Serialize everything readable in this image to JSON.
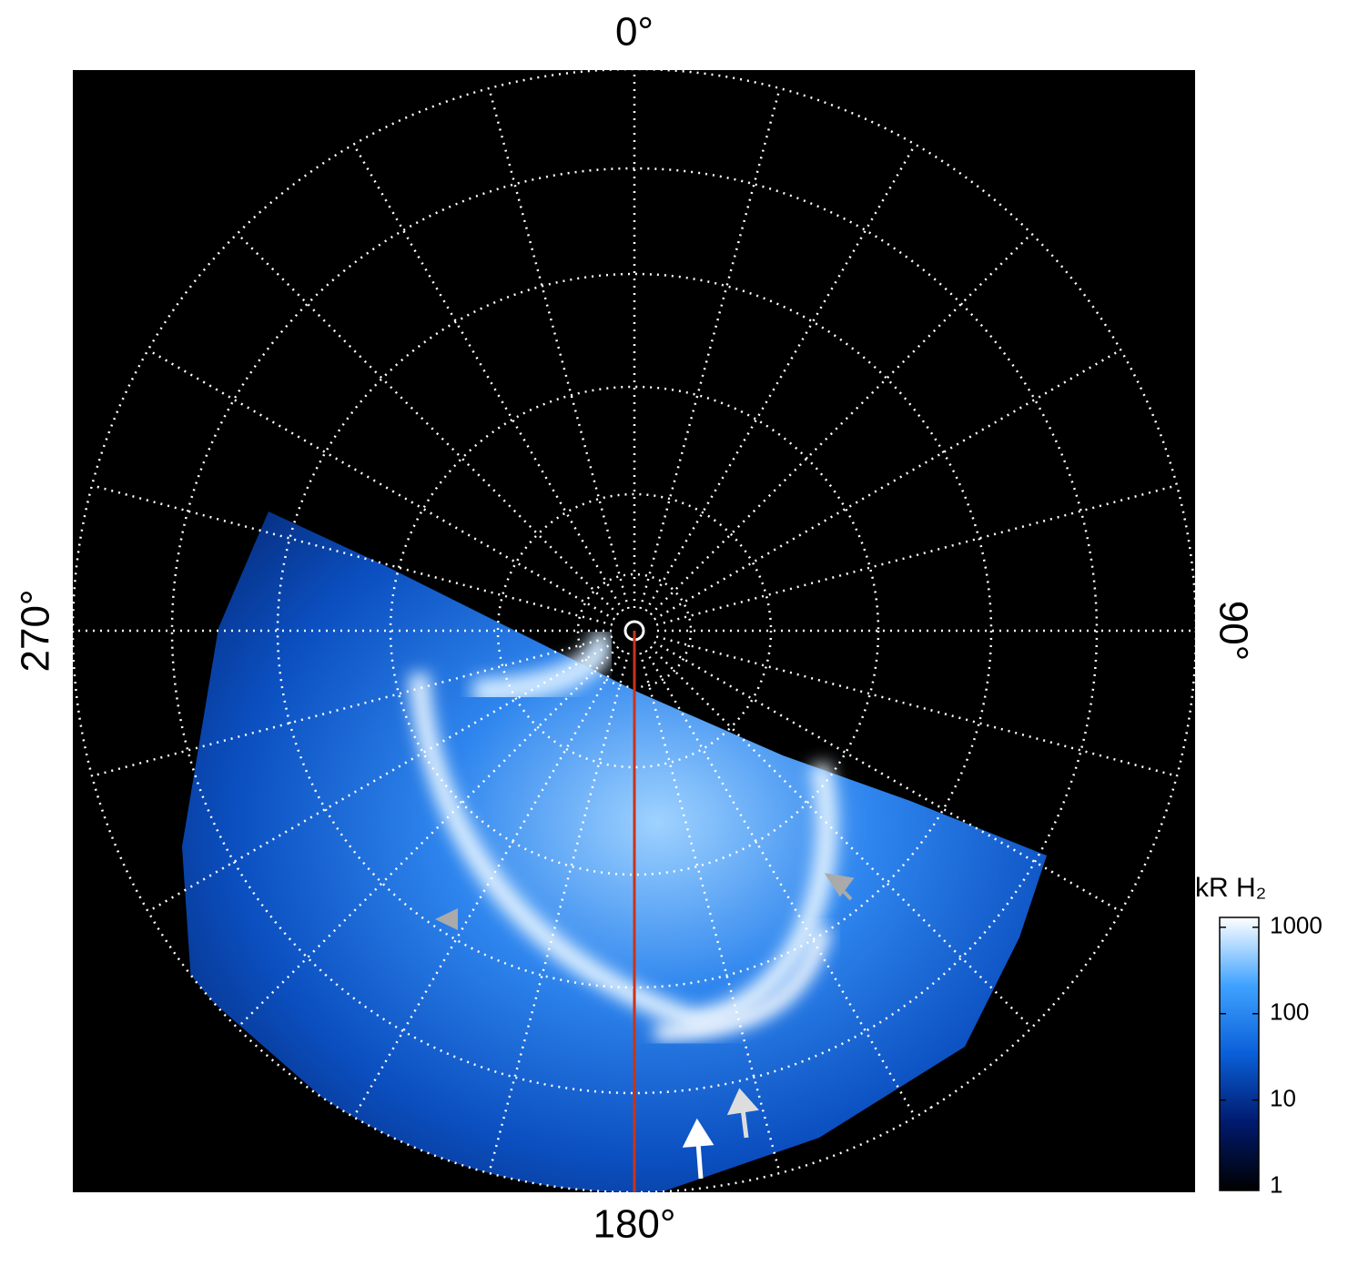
{
  "chart_data": {
    "type": "polar-image",
    "angle_labels": [
      {
        "value": 0,
        "label": "0°"
      },
      {
        "value": 90,
        "label": "90°"
      },
      {
        "value": 180,
        "label": "180°"
      },
      {
        "value": 270,
        "label": "270°"
      }
    ],
    "colorbar": {
      "label": "kR H₂",
      "log_scale": true,
      "ylim": [
        0.9,
        1300
      ],
      "yticks": [
        1,
        10,
        100,
        1000
      ],
      "colors": [
        "#000000",
        "#001a6e",
        "#0a5fd8",
        "#3fa2ff",
        "#ffffff"
      ]
    }
  }
}
